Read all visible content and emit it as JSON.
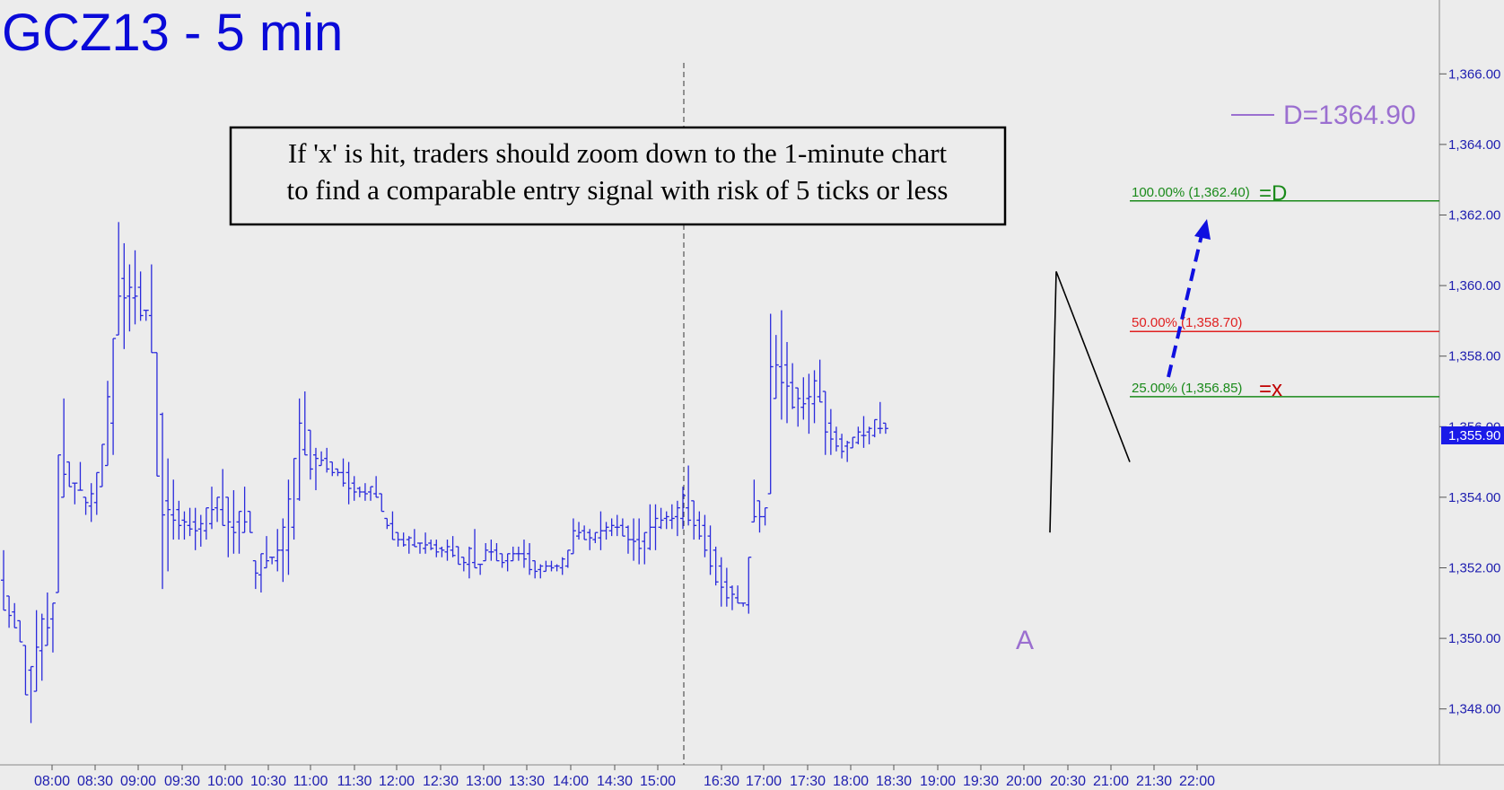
{
  "title": "GCZ13 - 5 min",
  "callout": {
    "line1": "If 'x' is hit, traders should zoom down to the 1-minute chart",
    "line2": "to find a comparable entry signal with risk of 5 ticks or less"
  },
  "d_target_label": "D=1364.90",
  "last_price": "1,355.90",
  "point_a_label": "A",
  "colors": {
    "background": "#ececec",
    "bars": "#2a2adc",
    "title": "#0a0ad8",
    "fib_green": "#1a8a1a",
    "fib_red": "#e02020",
    "d_purple": "#9b6fd0",
    "arrow_blue": "#1010e0",
    "x_red": "#c00000"
  },
  "chart_data": {
    "type": "ohlc",
    "title": "GCZ13 - 5 min",
    "ylim": [
      1346.5,
      1367.5
    ],
    "y_ticks": [
      "1,366.00",
      "1,364.00",
      "1,362.00",
      "1,360.00",
      "1,358.00",
      "1,356.00",
      "1,354.00",
      "1,352.00",
      "1,350.00",
      "1,348.00"
    ],
    "y_tick_values": [
      1366,
      1364,
      1362,
      1360,
      1358,
      1356,
      1354,
      1352,
      1350,
      1348
    ],
    "x_ticks": [
      "08:00",
      "08:30",
      "09:00",
      "09:30",
      "10:00",
      "10:30",
      "11:00",
      "11:30",
      "12:00",
      "12:30",
      "13:00",
      "13:30",
      "14:00",
      "14:30",
      "15:00",
      "16:30",
      "17:00",
      "17:30",
      "18:00",
      "18:30",
      "19:00",
      "19:30",
      "20:00",
      "20:30",
      "21:00",
      "21:30",
      "22:00"
    ],
    "session_break": "15:00–16:30",
    "levels": [
      {
        "label": "100.00% (1,362.40)",
        "value": 1362.4,
        "tag": "=D",
        "color": "green"
      },
      {
        "label": "50.00% (1,358.70)",
        "value": 1358.7,
        "tag": "",
        "color": "red"
      },
      {
        "label": "25.00% (1,356.85)",
        "value": 1356.85,
        "tag": "=x",
        "color": "green"
      }
    ],
    "d_target": 1364.9,
    "last_price": 1355.9,
    "point_a": {
      "label": "A",
      "price": 1350.7
    },
    "pattern_points": [
      1353.0,
      1360.4,
      1355.0
    ],
    "highs": [
      1352.5,
      1351.2,
      1351.0,
      1350.5,
      1349.8,
      1349.2,
      1350.8,
      1350.7,
      1351.3,
      1351.0,
      1355.2,
      1356.8,
      1355.0,
      1354.4,
      1355.0,
      1354.0,
      1354.4,
      1354.7,
      1355.5,
      1357.3,
      1358.5,
      1361.8,
      1361.2,
      1360.6,
      1361.0,
      1360.4,
      1359.3,
      1360.6,
      1358.1,
      1356.4,
      1355.1,
      1354.5,
      1353.9,
      1353.6,
      1353.7,
      1353.7,
      1353.5,
      1353.7,
      1354.3,
      1354.0,
      1354.8,
      1354.0,
      1354.2,
      1353.6,
      1354.3,
      1353.6,
      1352.2,
      1352.4,
      1352.9,
      1352.3,
      1353.1,
      1353.4,
      1354.5,
      1355.1,
      1356.8,
      1357.0,
      1355.9,
      1355.4,
      1355.3,
      1355.4,
      1355.0,
      1354.8,
      1355.1,
      1355.0,
      1354.6,
      1354.3,
      1354.4,
      1354.3,
      1354.6,
      1354.1,
      1353.4,
      1353.6,
      1353.0,
      1353.0,
      1352.9,
      1353.1,
      1352.7,
      1353.0,
      1352.8,
      1352.8,
      1352.6,
      1352.8,
      1352.9,
      1352.6,
      1352.3,
      1352.6,
      1353.1,
      1352.1,
      1352.7,
      1352.8,
      1352.7,
      1352.4,
      1352.4,
      1352.6,
      1352.6,
      1352.8,
      1352.7,
      1352.2,
      1352.1,
      1352.2,
      1352.2,
      1352.1,
      1352.3,
      1352.5,
      1353.4,
      1353.3,
      1353.2,
      1353.1,
      1353.0,
      1353.6,
      1353.3,
      1353.4,
      1353.5,
      1353.4,
      1353.2,
      1353.4,
      1353.4,
      1353.0,
      1353.8,
      1353.8,
      1353.7,
      1353.6,
      1353.8,
      1353.9,
      1354.3,
      1354.9,
      1353.9,
      1353.6,
      1353.5,
      1353.2,
      1352.6,
      1352.3,
      1352.0,
      1351.5,
      1351.5,
      1351.0,
      1352.3,
      1354.5,
      1353.9,
      1353.7,
      1359.2,
      1358.6,
      1359.3,
      1358.4,
      1357.8,
      1357.1,
      1357.4,
      1357.5,
      1357.6,
      1357.9,
      1357.0,
      1356.5,
      1356.0,
      1355.8,
      1355.6,
      1355.7,
      1356.0,
      1356.3,
      1356.0,
      1356.2,
      1356.7,
      1356.1
    ],
    "lows": [
      1350.8,
      1350.3,
      1350.3,
      1349.9,
      1348.4,
      1347.6,
      1348.5,
      1348.8,
      1349.8,
      1349.6,
      1351.3,
      1354.0,
      1354.3,
      1353.8,
      1354.2,
      1353.5,
      1353.3,
      1353.5,
      1354.3,
      1354.9,
      1355.2,
      1358.6,
      1358.2,
      1358.7,
      1358.9,
      1359.0,
      1359.0,
      1358.1,
      1354.6,
      1351.4,
      1351.9,
      1352.8,
      1352.8,
      1352.8,
      1352.9,
      1352.5,
      1352.6,
      1352.8,
      1353.1,
      1353.3,
      1353.2,
      1352.3,
      1352.4,
      1352.4,
      1353.0,
      1353.0,
      1351.4,
      1351.3,
      1352.0,
      1352.1,
      1351.9,
      1351.6,
      1351.8,
      1352.8,
      1353.9,
      1355.2,
      1354.5,
      1354.2,
      1354.9,
      1354.7,
      1354.6,
      1354.6,
      1354.3,
      1353.8,
      1353.9,
      1354.0,
      1353.9,
      1353.9,
      1354.0,
      1353.6,
      1353.1,
      1352.8,
      1352.6,
      1352.6,
      1352.4,
      1352.6,
      1352.4,
      1352.4,
      1352.5,
      1352.3,
      1352.3,
      1352.2,
      1352.3,
      1352.1,
      1351.9,
      1351.7,
      1352.0,
      1351.8,
      1352.2,
      1352.2,
      1352.2,
      1352.0,
      1351.9,
      1352.2,
      1352.2,
      1352.0,
      1351.8,
      1351.7,
      1351.7,
      1351.9,
      1351.9,
      1351.9,
      1351.8,
      1352.0,
      1352.4,
      1352.8,
      1352.8,
      1352.5,
      1352.7,
      1352.5,
      1352.8,
      1352.9,
      1352.9,
      1352.9,
      1352.4,
      1352.2,
      1352.1,
      1352.1,
      1352.5,
      1352.5,
      1353.1,
      1353.1,
      1353.1,
      1352.9,
      1353.1,
      1353.2,
      1352.8,
      1352.8,
      1352.3,
      1351.8,
      1351.5,
      1350.9,
      1350.9,
      1350.8,
      1351.0,
      1350.9,
      1350.7,
      1353.3,
      1353.0,
      1353.2,
      1354.1,
      1356.8,
      1356.2,
      1356.1,
      1356.5,
      1356.0,
      1356.2,
      1355.8,
      1356.1,
      1356.7,
      1355.2,
      1355.2,
      1355.3,
      1355.1,
      1355.0,
      1355.4,
      1355.5,
      1355.4,
      1355.5,
      1355.7,
      1355.8,
      1355.8
    ]
  }
}
